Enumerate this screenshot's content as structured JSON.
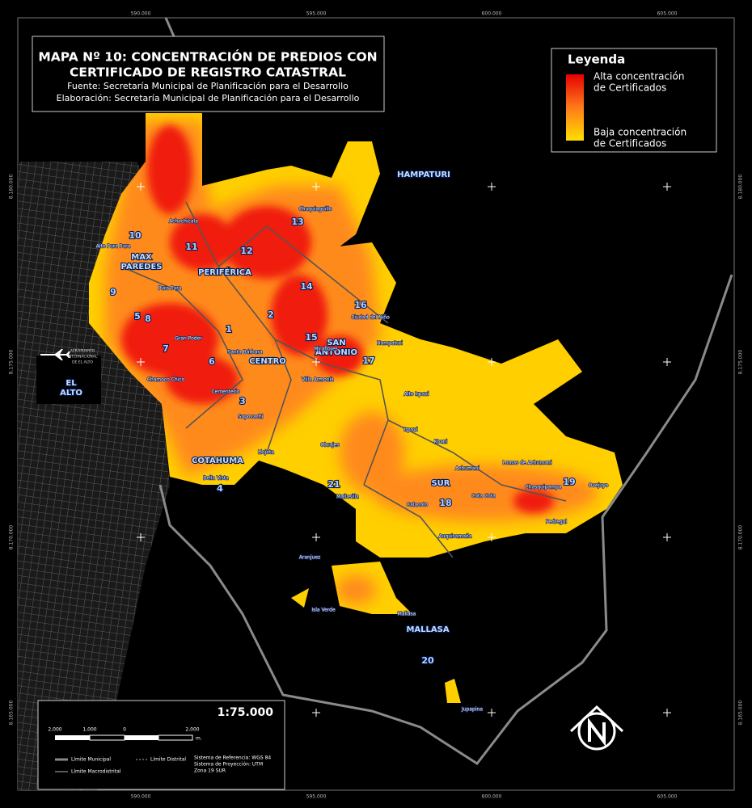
{
  "title_box": {
    "title_line1": "MAPA Nº 10: CONCENTRACIÓN DE PREDIOS CON",
    "title_line2": "CERTIFICADO DE REGISTRO CATASTRAL",
    "source": "Fuente: Secretaría Municipal de Planificación para el Desarrollo",
    "elaboration": "Elaboración: Secretaría Municipal de Planificación para el Desarrollo"
  },
  "legend": {
    "title": "Leyenda",
    "high": [
      "Alta concentración",
      "de Certificados"
    ],
    "low": [
      "Baja concentración",
      "de Certificados"
    ]
  },
  "grid_labels": {
    "x": [
      "590.000",
      "595.000",
      "600.000",
      "605.000"
    ],
    "y": [
      "8.180.000",
      "8.175.000",
      "8.170.000",
      "8.165.000"
    ]
  },
  "districts": [
    "1",
    "2",
    "3",
    "4",
    "5",
    "6",
    "7",
    "8",
    "9",
    "10",
    "11",
    "12",
    "13",
    "14",
    "15",
    "16",
    "17",
    "18",
    "19",
    "20",
    "21"
  ],
  "macrodistricts": [
    [
      "MAX",
      "PAREDES"
    ],
    [
      "PERIFÉRICA"
    ],
    [
      "CENTRO"
    ],
    [
      "SAN",
      "ANTONIO"
    ],
    [
      "COTAHUMA"
    ],
    [
      "SUR"
    ],
    [
      "MALLASA"
    ],
    [
      "HAMPATURI"
    ],
    [
      "EL",
      "ALTO"
    ]
  ],
  "places": [
    "Achachicala",
    "Chuquiaguillo",
    "Pura Pura",
    "Gran Poder",
    "Santa Bárbara",
    "Miraflores",
    "Hampaturi",
    "Villa Armonía",
    "Alto Irpavi",
    "Irpavi",
    "Obrajes",
    "Sopocachi",
    "Llojeta",
    "Achumani",
    "Calacoto",
    "Cota Cota",
    "Lomas de Achumani",
    "Ovejuyo",
    "Koani",
    "Chasquipampa",
    "Pedregal",
    "Auquisamaña",
    "Jupapina",
    "Mallasa",
    "Chamoco Chico",
    "Cementerio",
    "Alto Pura Pura",
    "Ciudad del Niño",
    "Aranjuez",
    "Isla Verde",
    "Mallasilla",
    "Bella Vista"
  ],
  "airport": [
    "AEROPUERTO",
    "INTERNACIONAL",
    "DE EL ALTO"
  ],
  "scale_box": {
    "scale": "1:75.000",
    "bar_labels": [
      "2,000",
      "1,000",
      "0",
      "2,000"
    ],
    "unit": "m.",
    "legend_items": [
      "Límite Municipal",
      "Límite Distrital",
      "Límite Macrodistrital"
    ],
    "reference": [
      "Sistema de Referencia: WGS 84",
      "Sistema de Proyección: UTM",
      "Zona 19 SUR"
    ]
  }
}
